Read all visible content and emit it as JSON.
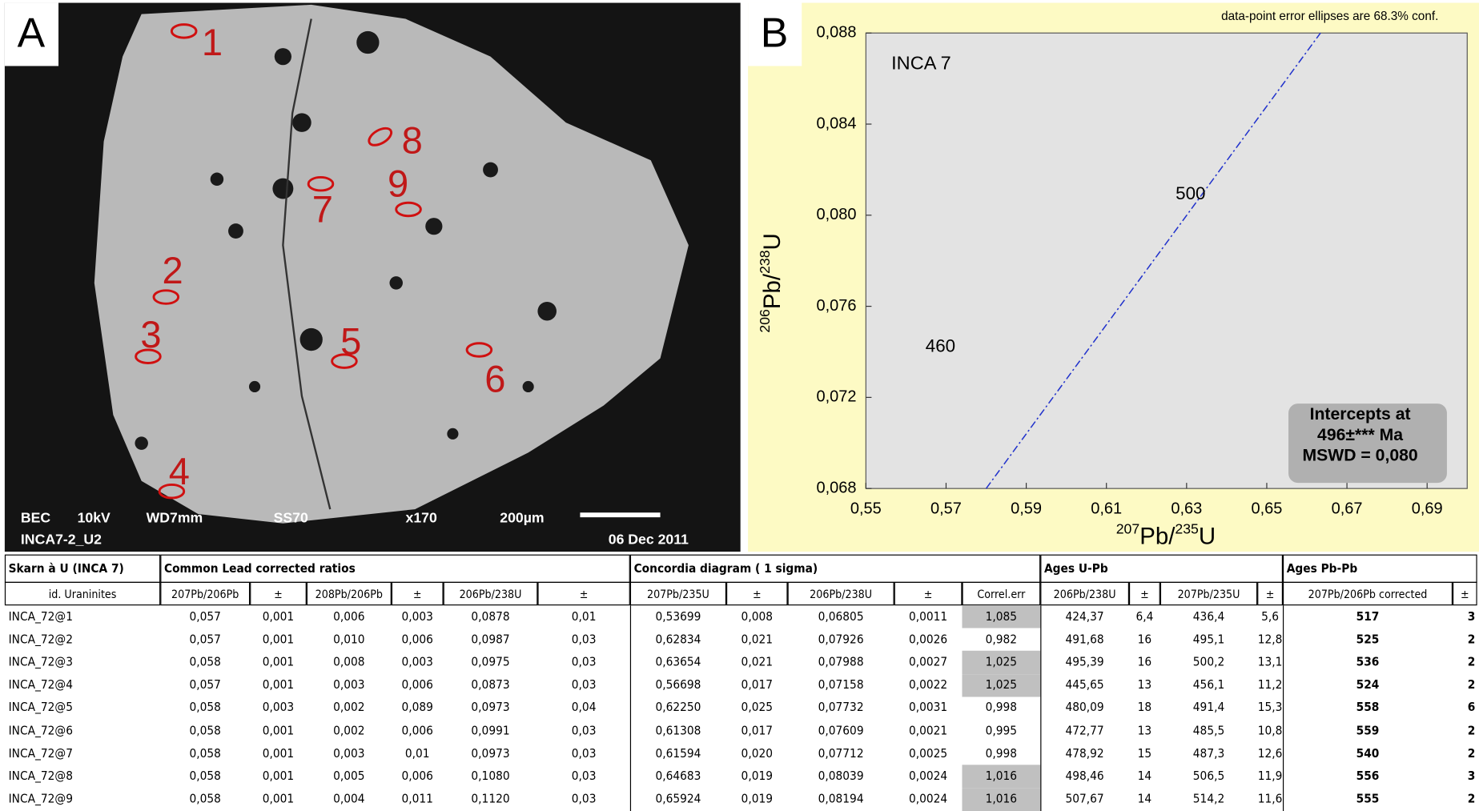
{
  "panel_a": {
    "label": "A",
    "spot_labels": [
      "1",
      "2",
      "3",
      "4",
      "5",
      "6",
      "7",
      "8",
      "9"
    ],
    "info": [
      "BEC",
      "10kV",
      "WD7mm",
      "SS70",
      "x170",
      "200µm",
      "INCA7-2_U2",
      "06 Dec 2011"
    ]
  },
  "panel_b": {
    "label": "B",
    "title": "INCA 7",
    "note": "data-point error ellipses are 68.3% conf.",
    "x_label": [
      {
        "text": "207",
        "sup": true
      },
      {
        "text": "Pb/",
        "sup": false
      },
      {
        "text": "235",
        "sup": true
      },
      {
        "text": "U",
        "sup": false
      }
    ],
    "y_label": [
      {
        "text": "206",
        "sup": true
      },
      {
        "text": "Pb/",
        "sup": false
      },
      {
        "text": "238",
        "sup": true
      },
      {
        "text": "U",
        "sup": false
      }
    ],
    "xlim": [
      0.55,
      0.7
    ],
    "ylim": [
      0.068,
      0.088
    ],
    "xticks": [
      {
        "value": 0.55,
        "label": "0,55"
      },
      {
        "value": 0.57,
        "label": "0,57"
      },
      {
        "value": 0.59,
        "label": "0,59"
      },
      {
        "value": 0.61,
        "label": "0,61"
      },
      {
        "value": 0.63,
        "label": "0,63"
      },
      {
        "value": 0.65,
        "label": "0,65"
      },
      {
        "value": 0.67,
        "label": "0,67"
      },
      {
        "value": 0.69,
        "label": "0,69"
      }
    ],
    "yticks": [
      {
        "value": 0.068,
        "label": "0,068"
      },
      {
        "value": 0.072,
        "label": "0,072"
      },
      {
        "value": 0.076,
        "label": "0,076"
      },
      {
        "value": 0.08,
        "label": "0,080"
      },
      {
        "value": 0.084,
        "label": "0,084"
      },
      {
        "value": 0.088,
        "label": "0,088"
      }
    ],
    "concordia": {
      "color": "#2233cc",
      "x": [
        0.58,
        0.6634
      ],
      "y": [
        0.068,
        0.088
      ]
    },
    "age_labels": [
      {
        "label": "500",
        "x": 0.631,
        "y": 0.0809
      },
      {
        "label": "460",
        "x": 0.5686,
        "y": 0.0742
      }
    ],
    "intercepts": [
      "Intercepts at",
      "496±*** Ma",
      "MSWD = 0,080"
    ]
  },
  "table": {
    "groups": [
      {
        "label": "Skarn à U (INCA 7)",
        "span": 1
      },
      {
        "label": "Common Lead corrected ratios",
        "span": 6
      },
      {
        "label": "Concordia diagram ( 1 sigma)",
        "span": 5
      },
      {
        "label": "Ages U-Pb",
        "span": 4
      },
      {
        "label": "Ages Pb-Pb",
        "span": 2
      }
    ],
    "columns": [
      "id. Uraninites",
      "207Pb/206Pb",
      "±",
      "208Pb/206Pb",
      "±",
      "206Pb/238U",
      "±",
      "207Pb/235U",
      "±",
      "206Pb/238U",
      "±",
      "Correl.err",
      "206Pb/238U",
      "±",
      "207Pb/235U",
      "±",
      "207Pb/206Pb corrected",
      "±"
    ],
    "shaded_column": 11,
    "shaded_rows": [
      0,
      2,
      3,
      7,
      8
    ],
    "rows": [
      [
        "INCA_72@1",
        "0,057",
        "0,001",
        "0,006",
        "0,003",
        "0,0878",
        "0,01",
        "0,53699",
        "0,008",
        "0,06805",
        "0,0011",
        "1,085",
        "424,37",
        "6,4",
        "436,4",
        "5,6",
        "517",
        "3"
      ],
      [
        "INCA_72@2",
        "0,057",
        "0,001",
        "0,010",
        "0,006",
        "0,0987",
        "0,03",
        "0,62834",
        "0,021",
        "0,07926",
        "0,0026",
        "0,982",
        "491,68",
        "16",
        "495,1",
        "12,8",
        "525",
        "2"
      ],
      [
        "INCA_72@3",
        "0,058",
        "0,001",
        "0,008",
        "0,003",
        "0,0975",
        "0,03",
        "0,63654",
        "0,021",
        "0,07988",
        "0,0027",
        "1,025",
        "495,39",
        "16",
        "500,2",
        "13,1",
        "536",
        "2"
      ],
      [
        "INCA_72@4",
        "0,057",
        "0,001",
        "0,003",
        "0,006",
        "0,0873",
        "0,03",
        "0,56698",
        "0,017",
        "0,07158",
        "0,0022",
        "1,025",
        "445,65",
        "13",
        "456,1",
        "11,2",
        "524",
        "2"
      ],
      [
        "INCA_72@5",
        "0,058",
        "0,003",
        "0,002",
        "0,089",
        "0,0973",
        "0,04",
        "0,62250",
        "0,025",
        "0,07732",
        "0,0031",
        "0,998",
        "480,09",
        "18",
        "491,4",
        "15,3",
        "558",
        "6"
      ],
      [
        "INCA_72@6",
        "0,058",
        "0,001",
        "0,002",
        "0,006",
        "0,0991",
        "0,03",
        "0,61308",
        "0,017",
        "0,07609",
        "0,0021",
        "0,995",
        "472,77",
        "13",
        "485,5",
        "10,8",
        "559",
        "2"
      ],
      [
        "INCA_72@7",
        "0,058",
        "0,001",
        "0,003",
        "0,01",
        "0,0973",
        "0,03",
        "0,61594",
        "0,020",
        "0,07712",
        "0,0025",
        "0,998",
        "478,92",
        "15",
        "487,3",
        "12,6",
        "540",
        "2"
      ],
      [
        "INCA_72@8",
        "0,058",
        "0,001",
        "0,005",
        "0,006",
        "0,1080",
        "0,03",
        "0,64683",
        "0,019",
        "0,08039",
        "0,0024",
        "1,016",
        "498,46",
        "14",
        "506,5",
        "11,9",
        "556",
        "3"
      ],
      [
        "INCA_72@9",
        "0,058",
        "0,001",
        "0,004",
        "0,011",
        "0,1120",
        "0,03",
        "0,65924",
        "0,019",
        "0,08194",
        "0,0024",
        "1,016",
        "507,67",
        "14",
        "514,2",
        "11,6",
        "555",
        "2"
      ]
    ]
  }
}
